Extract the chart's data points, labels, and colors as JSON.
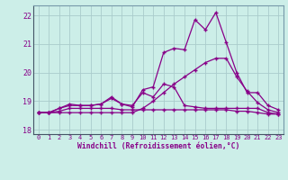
{
  "xlabel": "Windchill (Refroidissement éolien,°C)",
  "x": [
    0,
    1,
    2,
    3,
    4,
    5,
    6,
    7,
    8,
    9,
    10,
    11,
    12,
    13,
    14,
    15,
    16,
    17,
    18,
    19,
    20,
    21,
    22,
    23
  ],
  "line1": [
    18.6,
    18.6,
    18.65,
    18.75,
    18.75,
    18.75,
    18.75,
    18.75,
    18.7,
    18.7,
    18.7,
    18.7,
    18.7,
    18.7,
    18.7,
    18.7,
    18.7,
    18.7,
    18.7,
    18.65,
    18.65,
    18.6,
    18.55,
    18.55
  ],
  "line2": [
    18.6,
    18.6,
    18.75,
    18.9,
    18.85,
    18.85,
    18.9,
    19.15,
    18.9,
    18.8,
    19.4,
    19.5,
    20.7,
    20.85,
    20.8,
    21.85,
    21.5,
    22.1,
    21.05,
    20.0,
    19.3,
    19.3,
    18.85,
    18.7
  ],
  "line3": [
    18.6,
    18.6,
    18.75,
    18.85,
    18.85,
    18.85,
    18.9,
    19.1,
    18.9,
    18.85,
    19.3,
    19.15,
    19.6,
    19.5,
    18.85,
    18.8,
    18.75,
    18.75,
    18.75,
    18.75,
    18.75,
    18.75,
    18.6,
    18.55
  ],
  "line4": [
    18.6,
    18.6,
    18.6,
    18.6,
    18.6,
    18.6,
    18.6,
    18.6,
    18.6,
    18.6,
    18.75,
    19.0,
    19.3,
    19.6,
    19.85,
    20.1,
    20.35,
    20.5,
    20.5,
    19.85,
    19.35,
    18.95,
    18.7,
    18.6
  ],
  "ylim": [
    17.85,
    22.35
  ],
  "yticks": [
    18,
    19,
    20,
    21,
    22
  ],
  "xticks": [
    0,
    1,
    2,
    3,
    4,
    5,
    6,
    7,
    8,
    9,
    10,
    11,
    12,
    13,
    14,
    15,
    16,
    17,
    18,
    19,
    20,
    21,
    22,
    23
  ],
  "line_color": "#880088",
  "bg_color": "#cceee8",
  "grid_color": "#aacccc"
}
